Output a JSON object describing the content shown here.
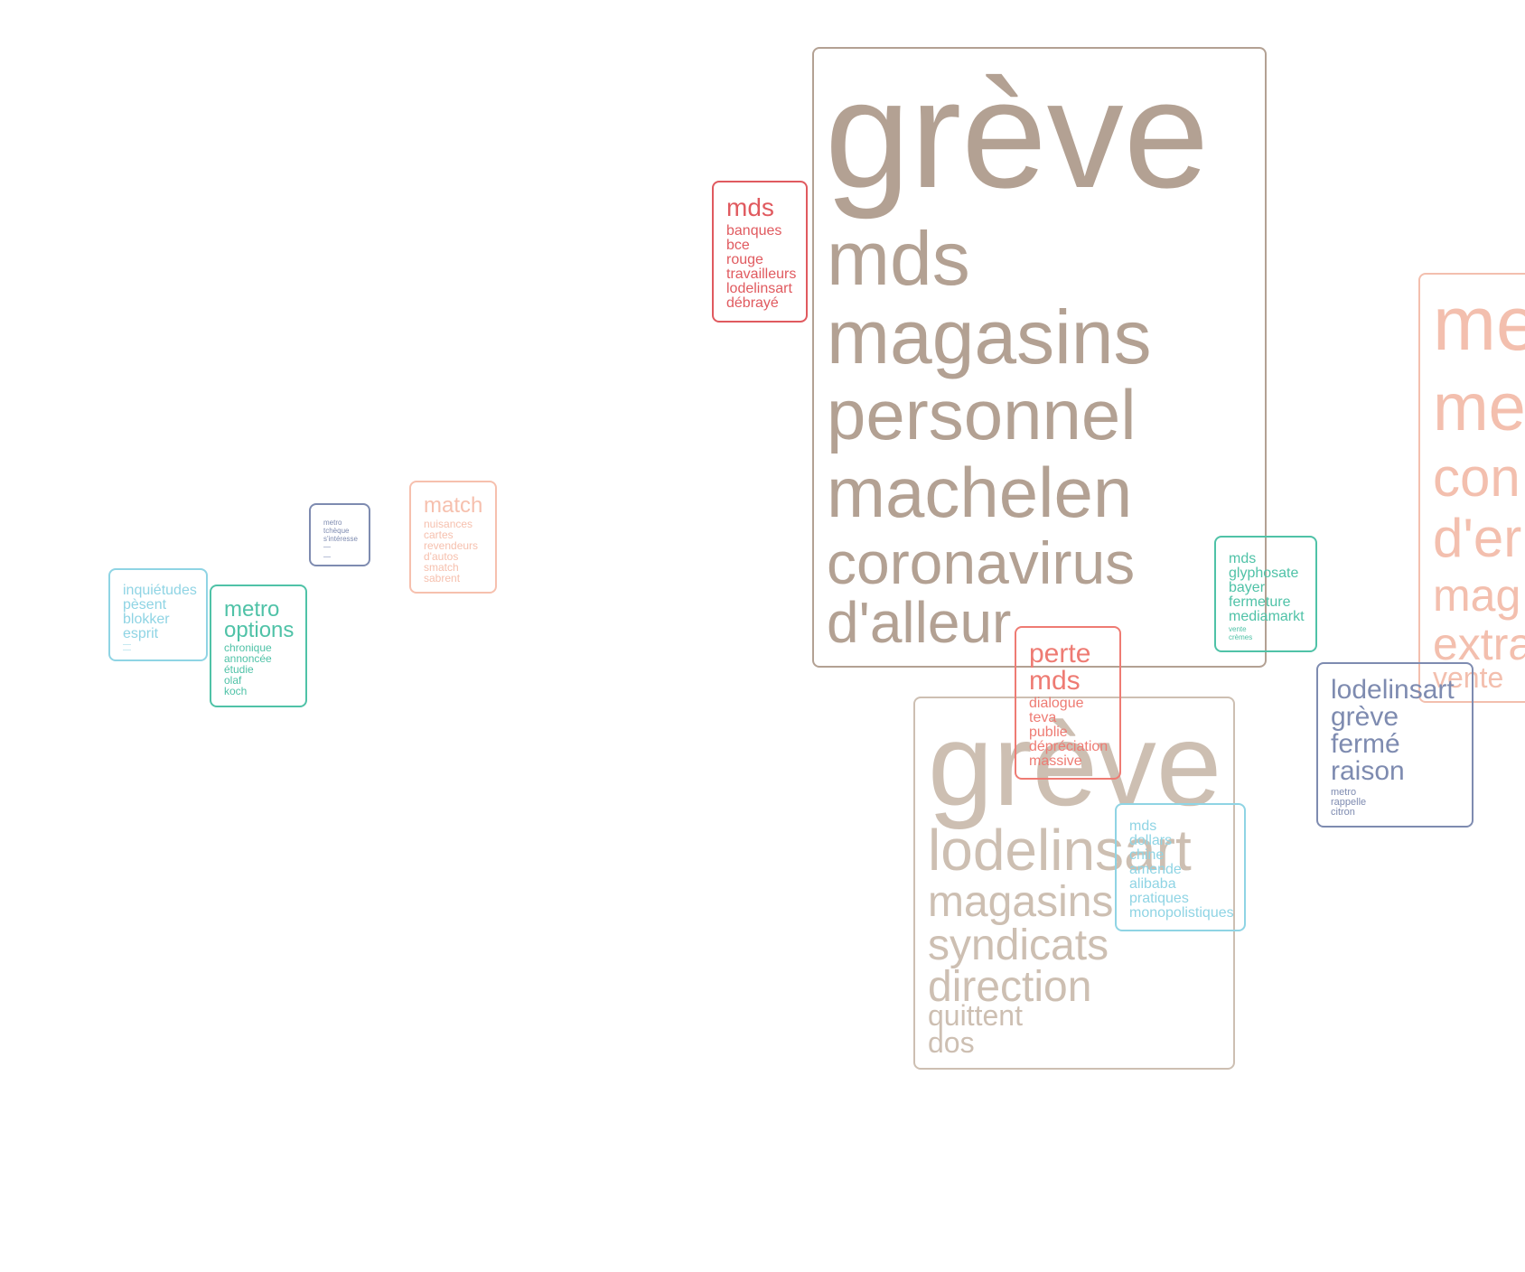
{
  "clusters": [
    {
      "id": "c-big-greve",
      "color": "#b3a193",
      "words": [
        "grève",
        "mds",
        "magasins",
        "personnel",
        "machelen",
        "coronavirus",
        "d'alleur"
      ]
    },
    {
      "id": "c-mds-banques",
      "color": "#e05a5f",
      "words": [
        "mds",
        "banques",
        "bce",
        "rouge",
        "travailleurs",
        "lodelinsart",
        "débrayé"
      ]
    },
    {
      "id": "c-right-partial",
      "color": "#f3bfae",
      "words": [
        "me",
        "me",
        "con",
        "d'er",
        "mag",
        "extra",
        "vente"
      ]
    },
    {
      "id": "c-glyphosate",
      "color": "#4fc2a7",
      "words": [
        "mds",
        "glyphosate",
        "bayer",
        "fermeture",
        "mediamarkt",
        "vente",
        "crèmes"
      ]
    },
    {
      "id": "c-perte",
      "color": "#ee7b73",
      "words": [
        "perte",
        "mds",
        "dialogue",
        "teva",
        "publie",
        "dépréciation",
        "massive"
      ]
    },
    {
      "id": "c-greve-lodelinsart",
      "color": "#cdbfb2",
      "words": [
        "grève",
        "lodelinsart",
        "magasins",
        "syndicats",
        "direction",
        "quittent",
        "dos"
      ]
    },
    {
      "id": "c-dollars",
      "color": "#8fd4e4",
      "words": [
        "mds",
        "dollars",
        "chine",
        "amende",
        "alibaba",
        "pratiques",
        "monopolistiques"
      ]
    },
    {
      "id": "c-lodelinsart",
      "color": "#7e8bb0",
      "words": [
        "lodelinsart",
        "grève",
        "fermé",
        "raison",
        "metro",
        "rappelle",
        "citron"
      ]
    },
    {
      "id": "c-match",
      "color": "#f6c0ae",
      "words": [
        "match",
        "nuisances",
        "cartes",
        "revendeurs",
        "d'autos",
        "smatch",
        "sabrent"
      ]
    },
    {
      "id": "c-metro-small",
      "color": "#7e8bb0",
      "words": [
        "metro",
        "tchèque",
        "s'intéresse"
      ]
    },
    {
      "id": "c-inquietudes",
      "color": "#8fd4e4",
      "words": [
        "inquiétudes",
        "pèsent",
        "blokker",
        "esprit"
      ]
    },
    {
      "id": "c-metro-options",
      "color": "#4fc2a7",
      "words": [
        "metro",
        "options",
        "chronique",
        "annoncée",
        "étudie",
        "olaf",
        "koch"
      ]
    }
  ]
}
